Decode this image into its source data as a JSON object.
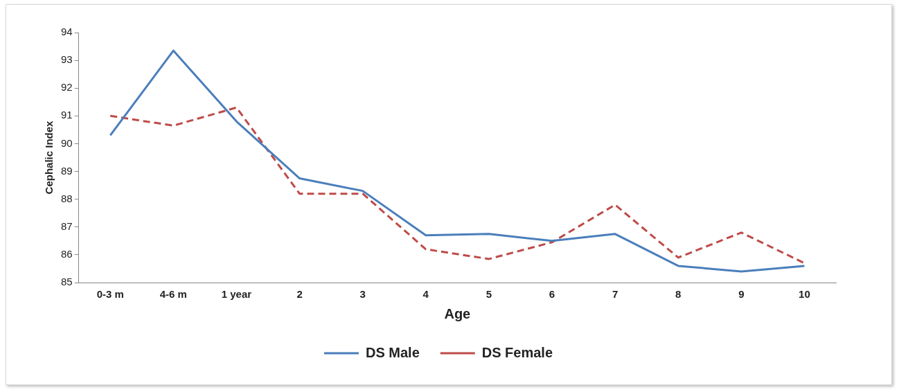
{
  "chart_data": {
    "type": "line",
    "xlabel": "Age",
    "ylabel": "Cephalic Index",
    "categories": [
      "0-3 m",
      "4-6 m",
      "1 year",
      "2",
      "3",
      "4",
      "5",
      "6",
      "7",
      "8",
      "9",
      "10"
    ],
    "series": [
      {
        "name": "DS Male",
        "color": "#4a7ebb",
        "line_style": "solid",
        "values": [
          90.3,
          93.35,
          90.8,
          88.75,
          88.3,
          86.7,
          86.75,
          86.5,
          86.75,
          85.6,
          85.4,
          85.6
        ]
      },
      {
        "name": "DS Female",
        "color": "#be4b48",
        "line_style": "dashed",
        "values": [
          91.0,
          90.65,
          91.3,
          88.2,
          88.2,
          86.2,
          85.85,
          86.45,
          87.8,
          85.9,
          86.8,
          85.7
        ]
      }
    ],
    "ylim": [
      85,
      94
    ],
    "yticks": [
      85,
      86,
      87,
      88,
      89,
      90,
      91,
      92,
      93,
      94
    ],
    "grid": false,
    "legend": "bottom",
    "marker": "none"
  }
}
